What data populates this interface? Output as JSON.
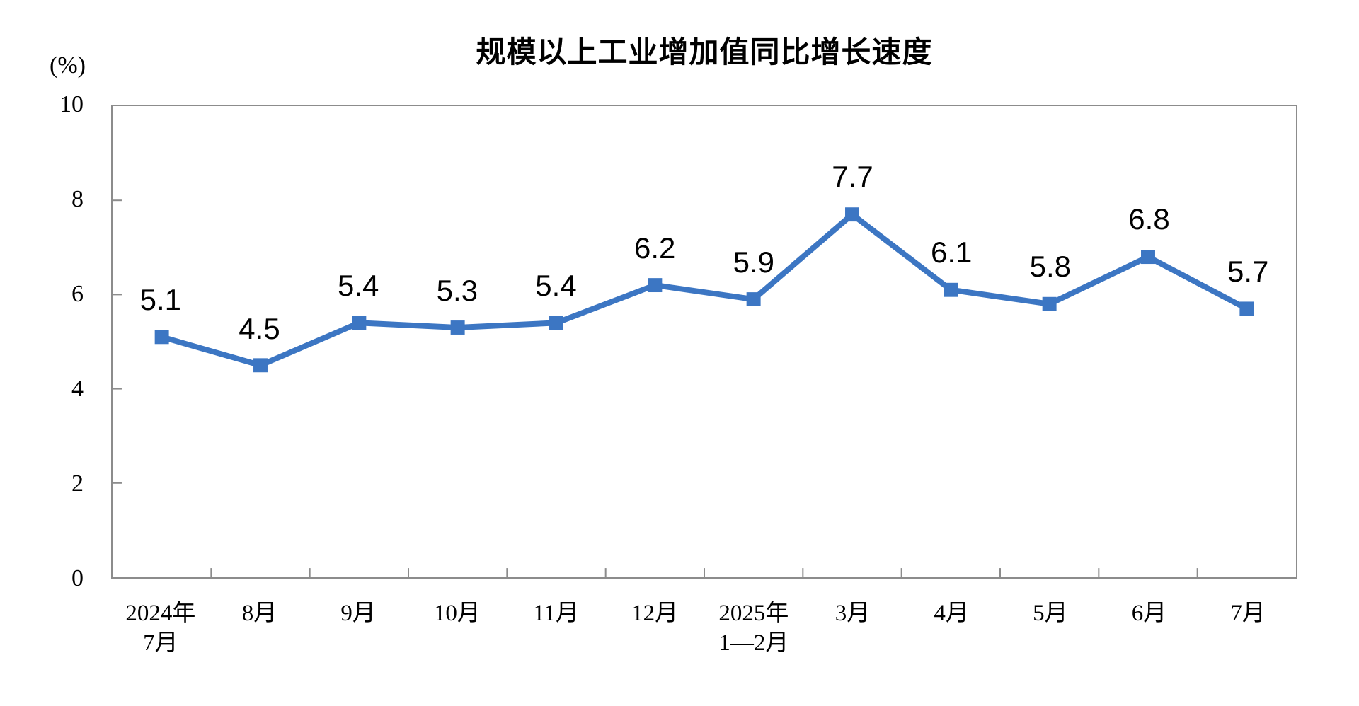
{
  "chart_data": {
    "type": "line",
    "title": "规模以上工业增加值同比增长速度",
    "ylabel": "(%)",
    "xlabel": "",
    "categories": [
      "2024年7月",
      "8月",
      "9月",
      "10月",
      "11月",
      "12月",
      "2025年1—2月",
      "3月",
      "4月",
      "5月",
      "6月",
      "7月"
    ],
    "x_tick_lines": [
      [
        "2024年",
        "7月"
      ],
      [
        "8月"
      ],
      [
        "9月"
      ],
      [
        "10月"
      ],
      [
        "11月"
      ],
      [
        "12月"
      ],
      [
        "2025年",
        "1—2月"
      ],
      [
        "3月"
      ],
      [
        "4月"
      ],
      [
        "5月"
      ],
      [
        "6月"
      ],
      [
        "7月"
      ]
    ],
    "values": [
      5.1,
      4.5,
      5.4,
      5.3,
      5.4,
      6.2,
      5.9,
      7.7,
      6.1,
      5.8,
      6.8,
      5.7
    ],
    "data_labels": [
      "5.1",
      "4.5",
      "5.4",
      "5.3",
      "5.4",
      "6.2",
      "5.9",
      "7.7",
      "6.1",
      "5.8",
      "6.8",
      "5.7"
    ],
    "ylim": [
      0,
      10
    ],
    "yticks": [
      "0",
      "2",
      "4",
      "6",
      "8",
      "10"
    ],
    "grid": false,
    "legend": "none",
    "marker": "square",
    "line_color": "#3C76C3",
    "axis_color": "#8C8C8C",
    "text_color": "#000000",
    "background": "#FFFFFF"
  }
}
